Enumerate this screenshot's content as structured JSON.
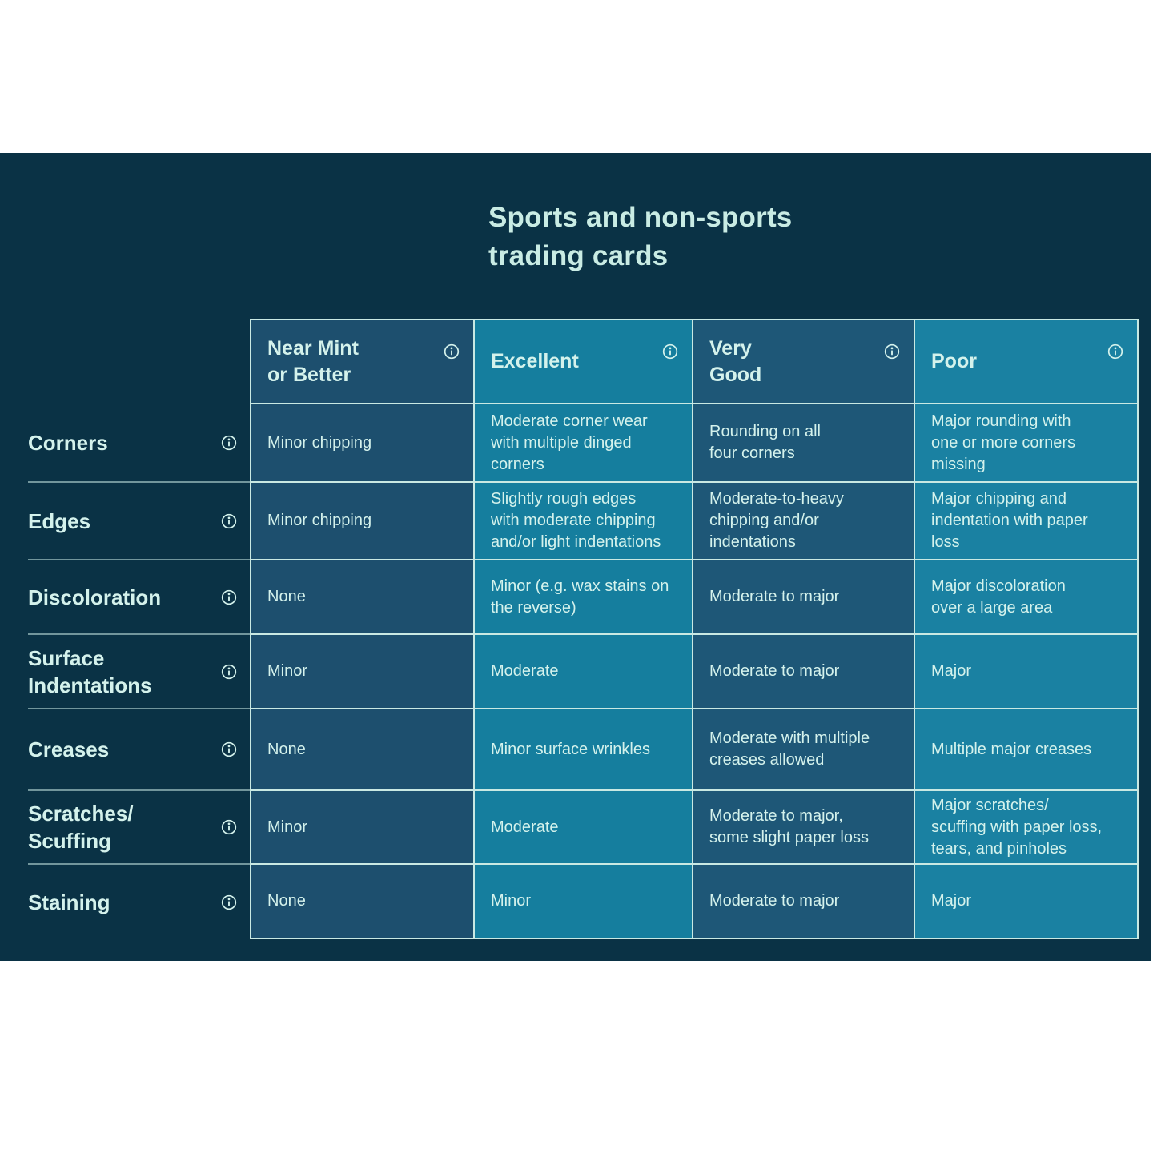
{
  "title": {
    "text": "Sports and non-sports\ntrading cards"
  },
  "colors": {
    "page_background": "#ffffff",
    "panel_background": "#0a3245",
    "column_backgrounds": [
      "#1d4f6e",
      "#157e9e",
      "#1e5777",
      "#1a81a2"
    ],
    "table_border": "#c9e9e3",
    "label_separator": "rgba(201,233,227,0.55)",
    "heading_text": "#c9ece4",
    "cell_text": "#d4f2ec"
  },
  "icons": {
    "info": "circled-i"
  },
  "table": {
    "columns": [
      {
        "key": "near-mint-or-better",
        "label": "Near Mint\nor Better"
      },
      {
        "key": "excellent",
        "label": "Excellent"
      },
      {
        "key": "very-good",
        "label": "Very\nGood"
      },
      {
        "key": "poor",
        "label": "Poor"
      }
    ],
    "rows": [
      {
        "key": "corners",
        "label": "Corners",
        "cells": [
          "Minor chipping",
          "Moderate corner wear\nwith multiple dinged\ncorners",
          "Rounding on all\nfour corners",
          "Major rounding with\none or more corners\nmissing"
        ]
      },
      {
        "key": "edges",
        "label": "Edges",
        "cells": [
          "Minor chipping",
          "Slightly rough edges\nwith moderate chipping\nand/or light indentations",
          "Moderate-to-heavy\nchipping and/or\nindentations",
          "Major chipping and\nindentation with paper\nloss"
        ]
      },
      {
        "key": "discoloration",
        "label": "Discoloration",
        "cells": [
          "None",
          "Minor (e.g. wax stains on\nthe reverse)",
          "Moderate to major",
          "Major discoloration\nover a large area"
        ]
      },
      {
        "key": "surface-indentations",
        "label": "Surface\nIndentations",
        "cells": [
          "Minor",
          "Moderate",
          "Moderate to major",
          "Major"
        ]
      },
      {
        "key": "creases",
        "label": "Creases",
        "cells": [
          "None",
          "Minor surface wrinkles",
          "Moderate with multiple\ncreases allowed",
          "Multiple major creases"
        ]
      },
      {
        "key": "scratches-scuffing",
        "label": "Scratches/\nScuffing",
        "cells": [
          "Minor",
          "Moderate",
          "Moderate to major,\nsome slight paper loss",
          "Major scratches/\nscuffing with paper loss,\ntears, and pinholes"
        ]
      },
      {
        "key": "staining",
        "label": "Staining",
        "cells": [
          "None",
          "Minor",
          "Moderate to major",
          "Major"
        ]
      }
    ]
  }
}
